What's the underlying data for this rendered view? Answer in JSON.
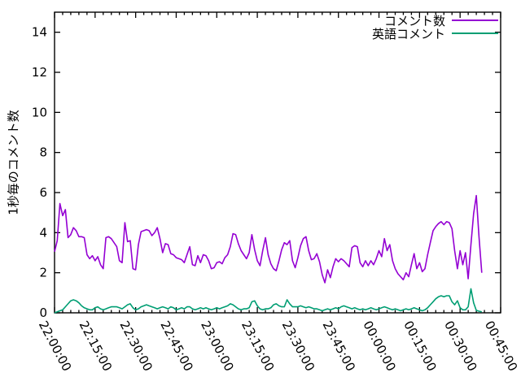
{
  "chart_data": {
    "type": "line",
    "title": "",
    "xlabel": "",
    "ylabel": "1秒毎のコメント数",
    "ylim": [
      0,
      15
    ],
    "yticks": [
      0,
      2,
      4,
      6,
      8,
      10,
      12,
      14
    ],
    "grid": false,
    "legend_position": "top-right-inside",
    "background": "#ffffff",
    "axis_color": "#000000",
    "x_minutes_range": [
      0,
      165
    ],
    "xtick_interval_minutes": 15,
    "minor_xtick_minutes": 3,
    "xtick_labels": [
      "22:00:00",
      "22:15:00",
      "22:30:00",
      "22:45:00",
      "23:00:00",
      "23:15:00",
      "23:30:00",
      "23:45:00",
      "00:00:00",
      "00:15:00",
      "00:30:00",
      "00:45:00"
    ],
    "x_sample_start_minute": 0,
    "x_sample_step_minutes": 1,
    "x_first_sample_time": "22:00:00",
    "x_last_sample_time": "00:38:00",
    "series": [
      {
        "key": "comments",
        "name": "コメント数",
        "color": "#9400d3",
        "values": [
          3.05,
          3.6,
          5.45,
          4.85,
          5.15,
          3.75,
          3.9,
          4.25,
          4.1,
          3.8,
          3.8,
          3.75,
          2.9,
          2.7,
          2.85,
          2.6,
          2.8,
          2.4,
          2.2,
          3.75,
          3.8,
          3.7,
          3.5,
          3.3,
          2.6,
          2.5,
          4.5,
          3.55,
          3.6,
          2.2,
          2.15,
          3.4,
          4.05,
          4.1,
          4.15,
          4.1,
          3.85,
          4.0,
          4.25,
          3.7,
          3.0,
          3.45,
          3.4,
          2.95,
          2.9,
          2.75,
          2.7,
          2.65,
          2.5,
          2.9,
          3.3,
          2.4,
          2.35,
          2.85,
          2.5,
          2.9,
          2.85,
          2.6,
          2.2,
          2.25,
          2.5,
          2.55,
          2.45,
          2.75,
          2.9,
          3.3,
          3.95,
          3.9,
          3.45,
          3.1,
          2.9,
          2.7,
          3.0,
          3.9,
          3.15,
          2.6,
          2.35,
          3.1,
          3.75,
          2.9,
          2.45,
          2.2,
          2.1,
          2.6,
          3.15,
          3.5,
          3.4,
          3.6,
          2.6,
          2.25,
          2.75,
          3.35,
          3.7,
          3.8,
          3.1,
          2.65,
          2.7,
          2.95,
          2.55,
          1.9,
          1.5,
          2.15,
          1.75,
          2.3,
          2.7,
          2.55,
          2.7,
          2.6,
          2.45,
          2.3,
          3.25,
          3.35,
          3.3,
          2.5,
          2.3,
          2.6,
          2.35,
          2.6,
          2.4,
          2.7,
          3.1,
          2.8,
          3.7,
          3.1,
          3.4,
          2.6,
          2.2,
          1.95,
          1.8,
          1.65,
          2.0,
          1.8,
          2.4,
          2.95,
          2.2,
          2.5,
          2.05,
          2.2,
          2.9,
          3.5,
          4.1,
          4.3,
          4.45,
          4.55,
          4.4,
          4.55,
          4.5,
          4.2,
          3.1,
          2.2,
          3.1,
          2.4,
          3.0,
          1.7,
          3.4,
          4.95,
          5.85,
          3.8,
          2.0
        ]
      },
      {
        "key": "english_comments",
        "name": "英語コメント",
        "color": "#009e73",
        "values": [
          0.0,
          0.05,
          0.1,
          0.15,
          0.3,
          0.45,
          0.6,
          0.65,
          0.6,
          0.5,
          0.35,
          0.25,
          0.2,
          0.15,
          0.15,
          0.25,
          0.3,
          0.2,
          0.15,
          0.2,
          0.25,
          0.3,
          0.3,
          0.3,
          0.25,
          0.2,
          0.3,
          0.4,
          0.45,
          0.25,
          0.15,
          0.2,
          0.3,
          0.35,
          0.4,
          0.35,
          0.3,
          0.25,
          0.2,
          0.25,
          0.3,
          0.25,
          0.2,
          0.3,
          0.25,
          0.15,
          0.2,
          0.25,
          0.2,
          0.3,
          0.3,
          0.2,
          0.15,
          0.2,
          0.25,
          0.2,
          0.25,
          0.2,
          0.15,
          0.2,
          0.25,
          0.2,
          0.25,
          0.3,
          0.35,
          0.45,
          0.4,
          0.3,
          0.2,
          0.15,
          0.2,
          0.2,
          0.25,
          0.55,
          0.6,
          0.35,
          0.2,
          0.15,
          0.2,
          0.2,
          0.25,
          0.4,
          0.45,
          0.35,
          0.3,
          0.3,
          0.65,
          0.45,
          0.3,
          0.3,
          0.3,
          0.35,
          0.3,
          0.25,
          0.3,
          0.25,
          0.2,
          0.2,
          0.15,
          0.1,
          0.15,
          0.2,
          0.15,
          0.2,
          0.25,
          0.2,
          0.3,
          0.35,
          0.3,
          0.25,
          0.2,
          0.25,
          0.2,
          0.15,
          0.2,
          0.15,
          0.2,
          0.25,
          0.2,
          0.15,
          0.2,
          0.25,
          0.3,
          0.25,
          0.2,
          0.15,
          0.2,
          0.15,
          0.1,
          0.15,
          0.2,
          0.15,
          0.2,
          0.25,
          0.2,
          0.15,
          0.1,
          0.15,
          0.25,
          0.4,
          0.55,
          0.7,
          0.8,
          0.85,
          0.8,
          0.85,
          0.85,
          0.55,
          0.4,
          0.6,
          0.25,
          0.15,
          0.15,
          0.3,
          1.2,
          0.5,
          0.12,
          0.08,
          0.05
        ]
      }
    ]
  }
}
